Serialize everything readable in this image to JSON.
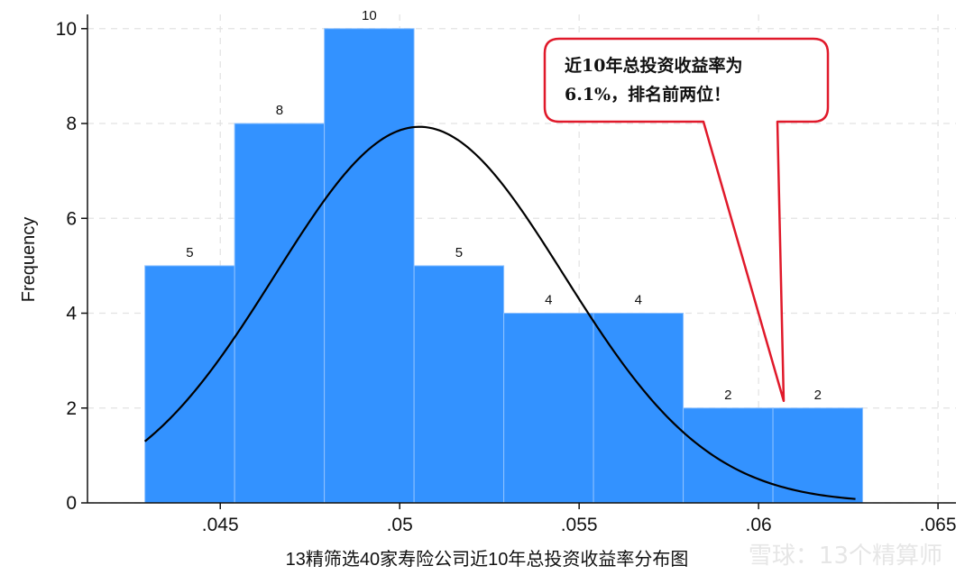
{
  "chart_data": {
    "type": "bar",
    "subtype": "histogram",
    "ylabel": "Frequency",
    "xlabel": "13精筛选40家寿险公司近10年总投资收益率分布图",
    "xlim": [
      0.0413,
      0.0655
    ],
    "ylim": [
      0,
      10.3
    ],
    "x_ticks": [
      0.045,
      0.05,
      0.055,
      0.06,
      0.065
    ],
    "x_tick_labels": [
      ".045",
      ".05",
      ".055",
      ".06",
      ".065"
    ],
    "y_ticks": [
      0,
      2,
      4,
      6,
      8,
      10
    ],
    "y_tick_labels": [
      "0",
      "2",
      "4",
      "6",
      "8",
      "10"
    ],
    "bar_color": "#3392ff",
    "bins": [
      {
        "start": 0.0429,
        "end": 0.0454,
        "value": 5,
        "label": "5"
      },
      {
        "start": 0.0454,
        "end": 0.0479,
        "value": 8,
        "label": "8"
      },
      {
        "start": 0.0479,
        "end": 0.0504,
        "value": 10,
        "label": "10"
      },
      {
        "start": 0.0504,
        "end": 0.0529,
        "value": 5,
        "label": "5"
      },
      {
        "start": 0.0529,
        "end": 0.0554,
        "value": 4,
        "label": "4"
      },
      {
        "start": 0.0554,
        "end": 0.0579,
        "value": 4,
        "label": "4"
      },
      {
        "start": 0.0579,
        "end": 0.0604,
        "value": 2,
        "label": "2"
      },
      {
        "start": 0.0604,
        "end": 0.0629,
        "value": 2,
        "label": "2"
      }
    ],
    "normal_curve": {
      "mean": 0.05055,
      "sd": 0.00402,
      "peak": 7.93,
      "x_range": [
        0.0429,
        0.0627
      ],
      "color": "#000000"
    },
    "grid": true,
    "annotation": {
      "lines": [
        "近10年总投资收益率为",
        "6.1%，排名前两位！"
      ],
      "points_to": [
        0.0607,
        2.15
      ],
      "border_color": "#e0192a"
    }
  },
  "watermark": "雪球：13个精算师"
}
